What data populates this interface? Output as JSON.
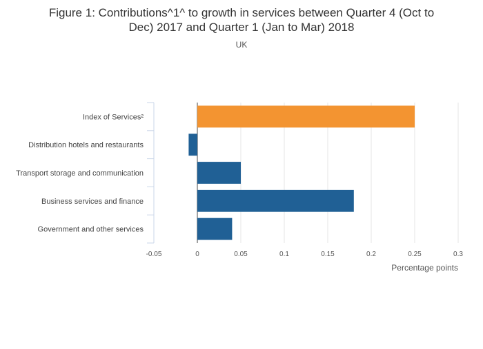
{
  "chart_data": {
    "type": "bar",
    "orientation": "horizontal",
    "title": "Figure 1: Contributions^1^ to growth in services between Quarter 4 (Oct to Dec) 2017 and Quarter 1 (Jan to Mar) 2018",
    "subtitle": "UK",
    "xlabel": "Percentage points",
    "ylabel": "",
    "categories": [
      "Index of Services²",
      "Distribution hotels and restaurants",
      "Transport storage and communication",
      "Business services and finance",
      "Government and other services"
    ],
    "values": [
      0.25,
      -0.01,
      0.05,
      0.18,
      0.04
    ],
    "xlim": [
      -0.05,
      0.3
    ],
    "xticks": [
      -0.05,
      0,
      0.05,
      0.1,
      0.15,
      0.2,
      0.25,
      0.3
    ],
    "xtick_labels": [
      "-0.05",
      "0",
      "0.05",
      "0.1",
      "0.15",
      "0.2",
      "0.25",
      "0.3"
    ],
    "grid": "vertical",
    "bar_colors": [
      "#f39431",
      "#206095",
      "#206095",
      "#206095",
      "#206095"
    ],
    "highlight_color": "#f39431",
    "series_color": "#206095"
  }
}
